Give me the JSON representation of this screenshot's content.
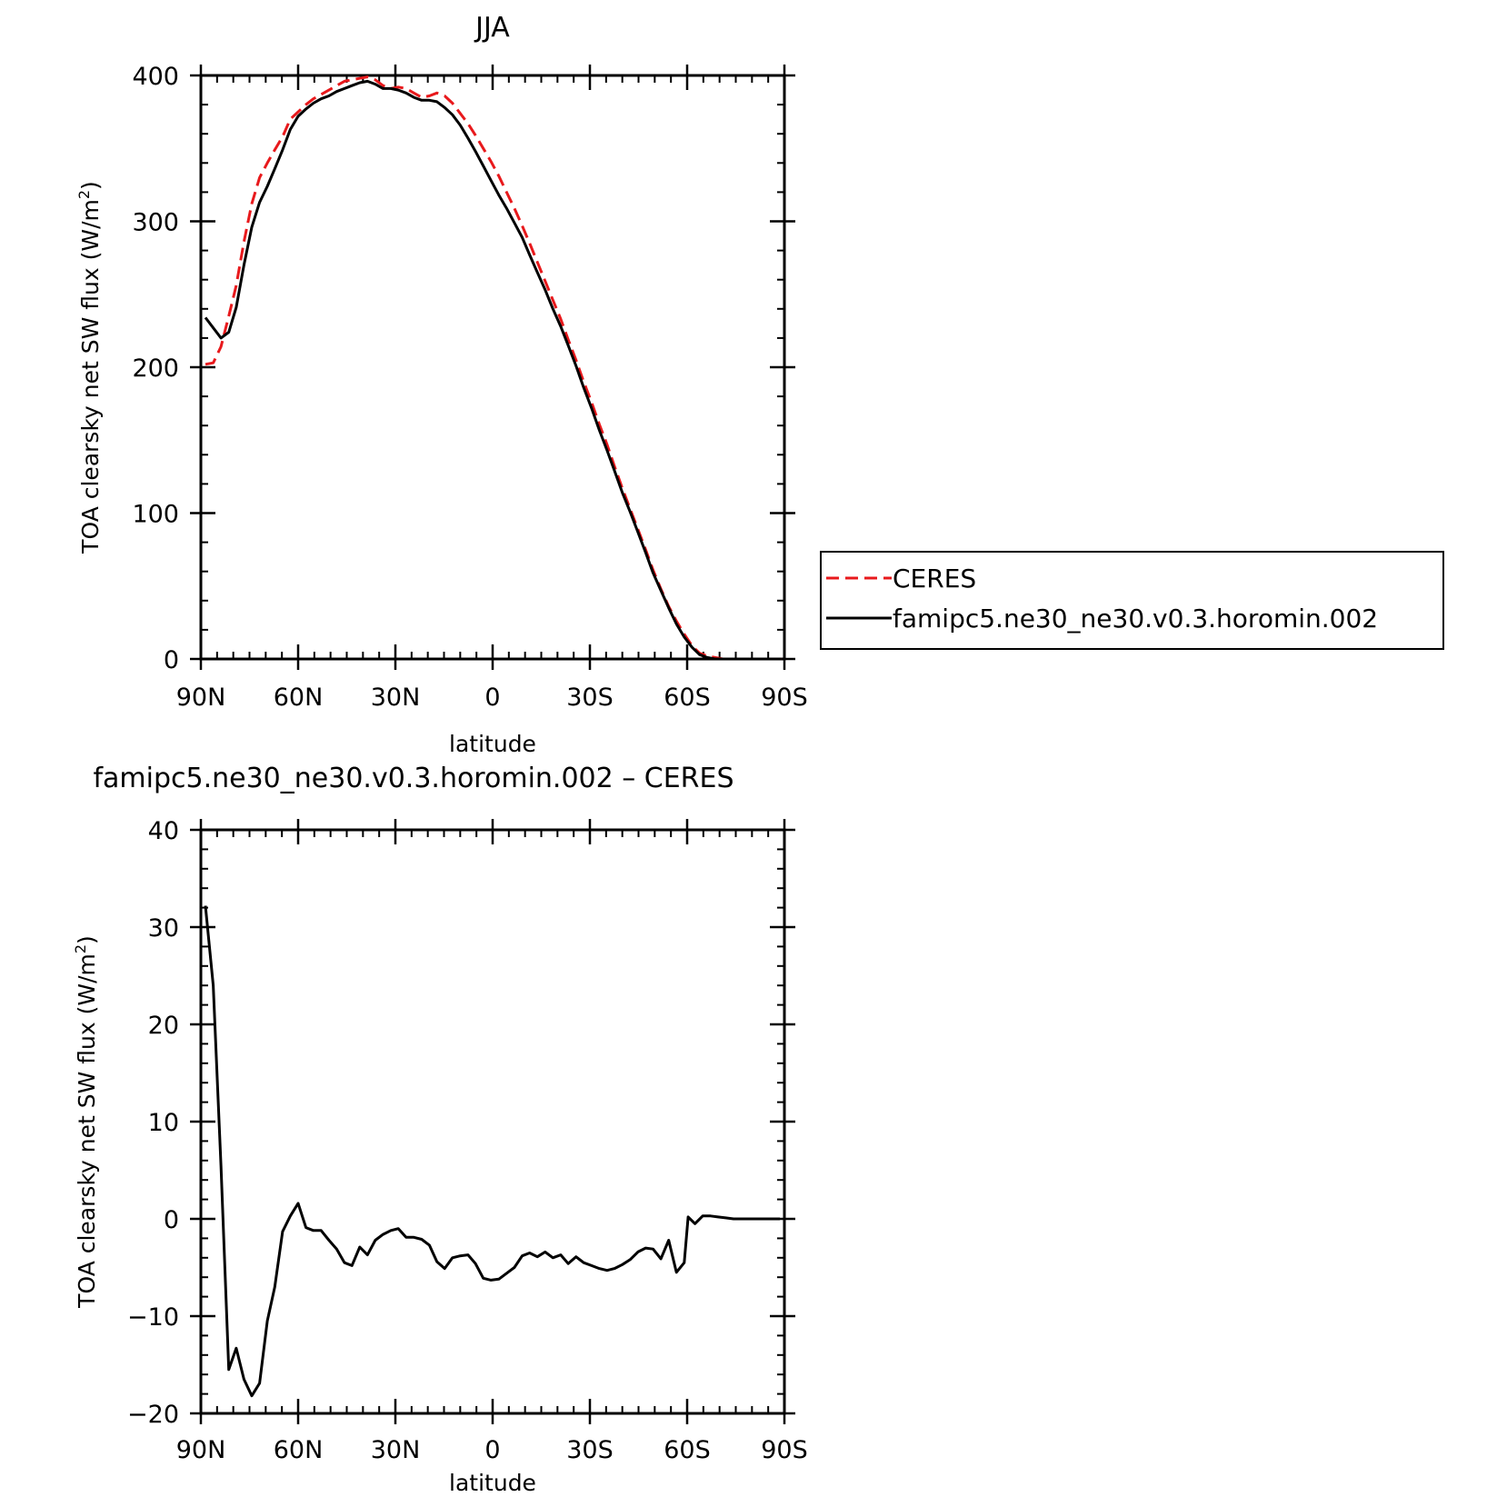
{
  "chart_data": [
    {
      "type": "line",
      "title": "JJA",
      "xlabel": "latitude",
      "ylabel": "TOA clearsky net SW flux (W/m",
      "ylabel_sup": "2",
      "ylabel_close": ")",
      "xlim": [
        90,
        -90
      ],
      "ylim": [
        0,
        400
      ],
      "x_ticks": [
        90,
        60,
        30,
        0,
        -30,
        -60,
        -90
      ],
      "x_tick_labels": [
        "90N",
        "60N",
        "30N",
        "0",
        "30S",
        "60S",
        "90S"
      ],
      "y_ticks": [
        0,
        100,
        200,
        300,
        400
      ],
      "y_tick_labels": [
        "0",
        "100",
        "200",
        "300",
        "400"
      ],
      "grid": false,
      "legend_position": "right-outside",
      "x": [
        88.6,
        86.2,
        83.8,
        81.4,
        79.1,
        76.7,
        74.3,
        71.9,
        69.5,
        67.2,
        64.8,
        62.4,
        60.0,
        57.6,
        55.3,
        52.9,
        50.5,
        48.1,
        45.7,
        43.4,
        41.0,
        38.6,
        36.2,
        33.8,
        31.4,
        29.1,
        26.7,
        24.3,
        21.9,
        19.5,
        17.2,
        14.8,
        12.4,
        10.0,
        7.6,
        5.3,
        2.9,
        0.5,
        -1.9,
        -4.3,
        -6.7,
        -9.1,
        -11.4,
        -13.8,
        -16.2,
        -18.6,
        -21.0,
        -23.3,
        -25.7,
        -28.1,
        -30.5,
        -32.9,
        -35.3,
        -37.6,
        -40.0,
        -42.4,
        -44.8,
        -47.2,
        -49.5,
        -51.9,
        -54.3,
        -56.7,
        -59.1,
        -61.5,
        -63.8,
        -66.2,
        -68.6,
        -71.0,
        -73.4,
        -75.7,
        -78.1,
        -80.5,
        -82.9,
        -85.3,
        -87.7,
        -89.0
      ],
      "series": [
        {
          "name": "CERES",
          "color": "#e8191c",
          "dash": "dashed",
          "values": [
            202,
            203,
            214,
            235,
            256,
            286,
            312,
            330,
            340,
            349,
            358,
            370,
            375,
            380,
            384,
            387,
            390,
            393,
            396,
            397,
            398,
            399,
            397,
            393,
            391,
            392,
            391,
            388,
            385,
            386,
            388,
            386,
            381,
            374,
            367,
            359,
            350,
            341,
            331,
            320,
            309,
            297,
            285,
            272,
            259,
            246,
            233,
            219,
            205,
            190,
            176,
            161,
            147,
            132,
            117,
            103,
            89,
            75,
            61,
            48,
            36,
            26,
            17,
            9,
            4,
            2,
            1,
            0,
            0,
            0,
            0,
            0,
            0,
            0,
            0,
            0
          ]
        },
        {
          "name": "famipc5.ne30_ne30.v0.3.horomin.002",
          "color": "#000000",
          "dash": "solid",
          "values": [
            234,
            227,
            220,
            224,
            241,
            270,
            296,
            313,
            324,
            336,
            349,
            363,
            372,
            377,
            381,
            384,
            386,
            389,
            391,
            393,
            395,
            396,
            394,
            391,
            391,
            390,
            388,
            385,
            383,
            383,
            382,
            378,
            373,
            366,
            357,
            348,
            338,
            328,
            318,
            309,
            299,
            289,
            277,
            265,
            253,
            240,
            228,
            215,
            201,
            186,
            172,
            157,
            143,
            129,
            114,
            101,
            87,
            73,
            59,
            47,
            35,
            24,
            15,
            8,
            3,
            1,
            0,
            0,
            0,
            0,
            0,
            0,
            0,
            0,
            0,
            0
          ]
        }
      ]
    },
    {
      "type": "line",
      "title": "famipc5.ne30_ne30.v0.3.horomin.002 – CERES",
      "xlabel": "latitude",
      "ylabel": "TOA clearsky net SW flux (W/m",
      "ylabel_sup": "2",
      "ylabel_close": ")",
      "xlim": [
        90,
        -90
      ],
      "ylim": [
        -20,
        40
      ],
      "x_ticks": [
        90,
        60,
        30,
        0,
        -30,
        -60,
        -90
      ],
      "x_tick_labels": [
        "90N",
        "60N",
        "30N",
        "0",
        "30S",
        "60S",
        "90S"
      ],
      "y_ticks": [
        -20,
        -10,
        0,
        10,
        20,
        30,
        40
      ],
      "y_tick_labels": [
        "−20",
        "−10",
        "0",
        "10",
        "20",
        "30",
        "40"
      ],
      "grid": false,
      "series": [
        {
          "color": "#000000",
          "dash": "solid",
          "x": [
            88.6,
            86.2,
            83.8,
            81.4,
            79.1,
            76.7,
            74.3,
            71.9,
            69.5,
            67.2,
            64.8,
            62.4,
            60.0,
            57.6,
            55.3,
            52.9,
            50.5,
            48.1,
            45.7,
            43.4,
            41.0,
            38.6,
            36.2,
            33.8,
            31.4,
            29.1,
            26.7,
            24.3,
            21.9,
            19.5,
            17.2,
            14.8,
            12.4,
            10.0,
            7.6,
            5.3,
            2.9,
            0.5,
            -1.9,
            -4.3,
            -6.7,
            -9.1,
            -11.4,
            -13.8,
            -16.2,
            -18.6,
            -21.0,
            -23.3,
            -25.7,
            -28.1,
            -30.5,
            -32.9,
            -35.3,
            -37.6,
            -40.0,
            -42.4,
            -44.8,
            -47.2,
            -49.5,
            -51.9,
            -54.3,
            -56.7,
            -59.1,
            -60.3,
            -62.4,
            -64.8,
            -67.2,
            -69.5,
            -71.9,
            -74.3,
            -76.7,
            -79.1,
            -81.4,
            -83.8,
            -86.2,
            -88.6
          ],
          "values": [
            32.2,
            24.0,
            5.5,
            -15.5,
            -13.3,
            -16.5,
            -18.2,
            -16.9,
            -10.5,
            -7.0,
            -1.3,
            0.3,
            1.6,
            -0.9,
            -1.2,
            -1.2,
            -2.2,
            -3.1,
            -4.5,
            -4.8,
            -2.9,
            -3.7,
            -2.2,
            -1.6,
            -1.2,
            -1.0,
            -1.9,
            -1.9,
            -2.1,
            -2.7,
            -4.4,
            -5.1,
            -4.0,
            -3.8,
            -3.7,
            -4.6,
            -6.1,
            -6.3,
            -6.2,
            -5.6,
            -5.0,
            -3.8,
            -3.5,
            -3.9,
            -3.4,
            -4.0,
            -3.7,
            -4.6,
            -3.9,
            -4.5,
            -4.8,
            -5.1,
            -5.3,
            -5.1,
            -4.7,
            -4.2,
            -3.4,
            -3.0,
            -3.1,
            -4.1,
            -2.2,
            -5.5,
            -4.5,
            0.2,
            -0.5,
            0.3,
            0.3,
            0.2,
            0.1,
            0.0,
            0.0,
            0.0,
            0.0,
            0.0,
            0.0,
            0.0
          ]
        }
      ]
    }
  ]
}
